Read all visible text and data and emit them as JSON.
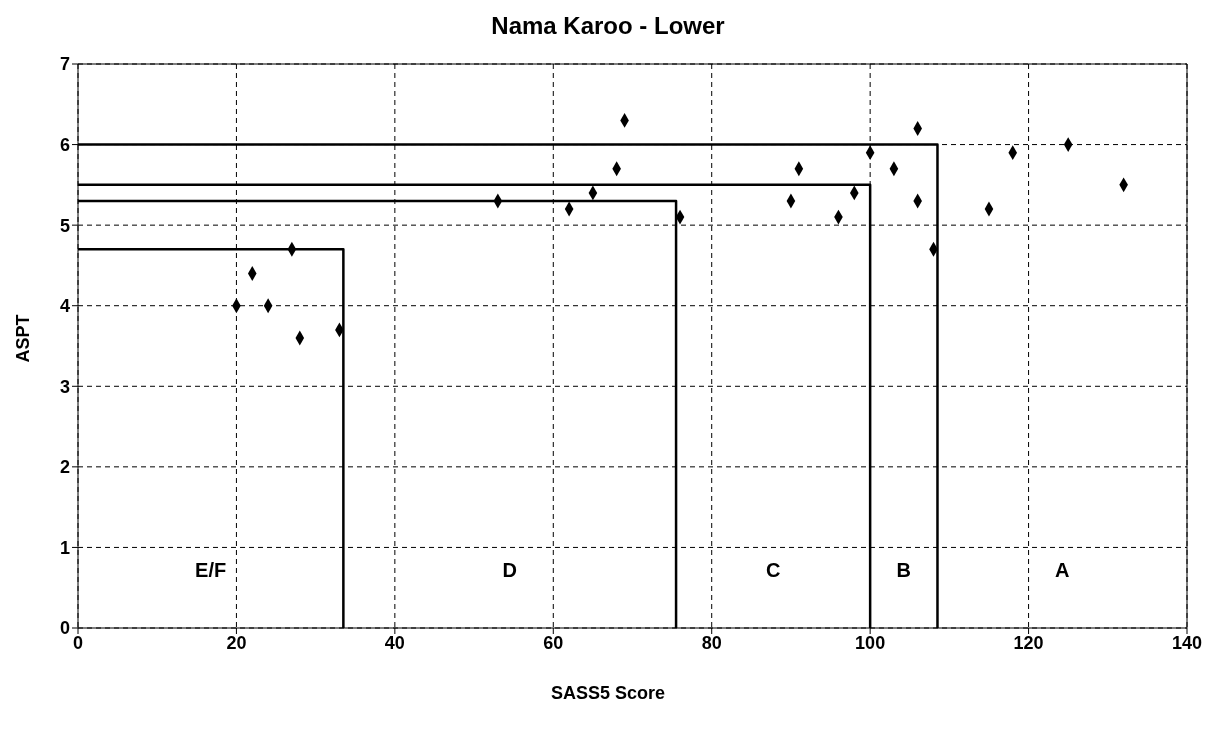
{
  "chart_data": {
    "type": "scatter",
    "title": "Nama Karoo - Lower",
    "xlabel": "SASS5 Score",
    "ylabel": "ASPT",
    "series": [
      {
        "color": "#000000",
        "marker": "diamond",
        "x": [
          20,
          22,
          24,
          27,
          28,
          33,
          53,
          62,
          65,
          68,
          69,
          76,
          90,
          91,
          96,
          98,
          100,
          103,
          106,
          106,
          108,
          115,
          118,
          125,
          132
        ],
        "values": [
          4.0,
          4.4,
          4.0,
          4.7,
          3.6,
          3.7,
          5.3,
          5.2,
          5.4,
          5.7,
          6.3,
          5.1,
          5.3,
          5.7,
          5.1,
          5.4,
          5.9,
          5.7,
          6.2,
          5.3,
          4.7,
          5.2,
          5.9,
          6.0,
          5.5
        ]
      },
      {
        "type": "line",
        "color": "#000000",
        "marker": "none",
        "x": [
          0,
          33.5,
          33.5
        ],
        "values": [
          4.7,
          4.7,
          0
        ]
      },
      {
        "type": "line",
        "color": "#000000",
        "marker": "none",
        "x": [
          0,
          75.5,
          75.5
        ],
        "values": [
          5.3,
          5.3,
          0
        ]
      },
      {
        "type": "line",
        "color": "#000000",
        "marker": "none",
        "x": [
          0,
          100,
          100
        ],
        "values": [
          5.5,
          5.5,
          0
        ]
      },
      {
        "type": "line",
        "color": "#000000",
        "marker": "none",
        "x": [
          0,
          108.5,
          108.5
        ],
        "values": [
          6.0,
          6.0,
          0
        ]
      }
    ],
    "annotations": [
      "E/F",
      "D",
      "C",
      "B",
      "A"
    ],
    "xlim": [
      0,
      140
    ],
    "xticks": [
      0,
      20,
      40,
      60,
      80,
      100,
      120,
      140
    ],
    "ylim": [
      0,
      7
    ],
    "yticks": [
      0,
      1,
      2,
      3,
      4,
      5,
      6,
      7
    ],
    "grid": true,
    "line_style": "solid"
  }
}
